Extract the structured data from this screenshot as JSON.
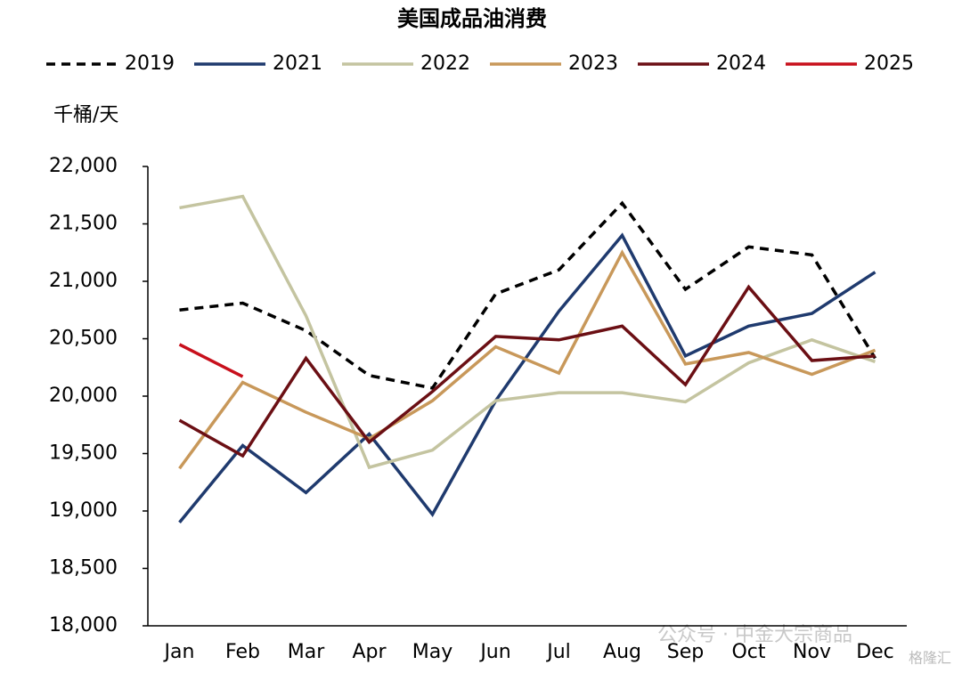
{
  "chart_data": {
    "type": "line",
    "title": "美国成品油消费",
    "y_label": "千桶/天",
    "categories": [
      "Jan",
      "Feb",
      "Mar",
      "Apr",
      "May",
      "Jun",
      "Jul",
      "Aug",
      "Sep",
      "Oct",
      "Nov",
      "Dec"
    ],
    "series": [
      {
        "name": "2019",
        "color": "#000000",
        "dashed": true,
        "values": [
          20750,
          20810,
          20570,
          20180,
          20070,
          20890,
          21100,
          21680,
          20930,
          21300,
          21230,
          20330
        ]
      },
      {
        "name": "2021",
        "color": "#1f3a6e",
        "values": [
          18900,
          19570,
          19160,
          19670,
          18970,
          19960,
          20740,
          21400,
          20350,
          20610,
          20720,
          21080
        ]
      },
      {
        "name": "2022",
        "color": "#c4c4a0",
        "values": [
          21640,
          21740,
          20700,
          19380,
          19530,
          19960,
          20030,
          20030,
          19950,
          20290,
          20490,
          20300
        ]
      },
      {
        "name": "2023",
        "color": "#c8985a",
        "values": [
          19370,
          20120,
          19860,
          19630,
          19960,
          20430,
          20200,
          21250,
          20280,
          20380,
          20190,
          20400
        ]
      },
      {
        "name": "2024",
        "color": "#6b0f14",
        "values": [
          19790,
          19480,
          20330,
          19600,
          20040,
          20520,
          20490,
          20610,
          20100,
          20950,
          20310,
          20350
        ]
      },
      {
        "name": "2025",
        "color": "#c8101c",
        "values": [
          20450,
          20170,
          null,
          null,
          null,
          null,
          null,
          null,
          null,
          null,
          null,
          null
        ]
      }
    ],
    "ylim": [
      18000,
      22000
    ],
    "yticks": [
      {
        "value": 18000,
        "label": "18,000"
      },
      {
        "value": 18500,
        "label": "18,500"
      },
      {
        "value": 19000,
        "label": "19,000"
      },
      {
        "value": 19500,
        "label": "19,500"
      },
      {
        "value": 20000,
        "label": "20,000"
      },
      {
        "value": 20500,
        "label": "20,500"
      },
      {
        "value": 21000,
        "label": "21,000"
      },
      {
        "value": 21500,
        "label": "21,500"
      },
      {
        "value": 22000,
        "label": "22,000"
      }
    ],
    "grid": false,
    "legend": "top",
    "annotations": [
      "公众号 · 中金大宗商品",
      "格隆汇"
    ]
  }
}
